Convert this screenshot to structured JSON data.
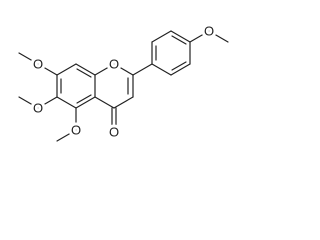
{
  "atoms": [
    "O",
    "O",
    "O",
    "O",
    "O",
    "O"
  ]
}
